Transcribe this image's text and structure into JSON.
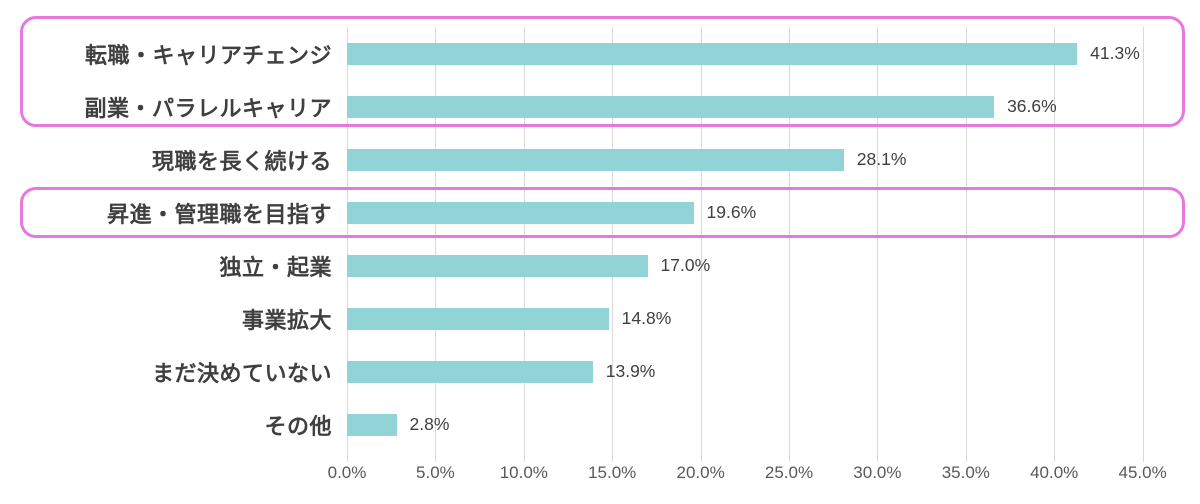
{
  "chart_data": {
    "type": "bar",
    "orientation": "horizontal",
    "title": "",
    "xlabel": "",
    "ylabel": "",
    "categories": [
      "転職・キャリアチェンジ",
      "副業・パラレルキャリア",
      "現職を長く続ける",
      "昇進・管理職を目指す",
      "独立・起業",
      "事業拡大",
      "まだ決めていない",
      "その他"
    ],
    "values": [
      41.3,
      36.6,
      28.1,
      19.6,
      17.0,
      14.8,
      13.9,
      2.8
    ],
    "value_labels": [
      "41.3%",
      "36.6%",
      "28.1%",
      "19.6%",
      "17.0%",
      "14.8%",
      "13.9%",
      "2.8%"
    ],
    "xlim": [
      0,
      45
    ],
    "x_tick_step": 5,
    "x_tick_labels": [
      "0.0%",
      "5.0%",
      "10.0%",
      "15.0%",
      "20.0%",
      "25.0%",
      "30.0%",
      "35.0%",
      "40.0%",
      "45.0%"
    ],
    "grid": "vertical",
    "legend_position": "none",
    "highlights": [
      {
        "name": "highlight-box-top-two",
        "categories": [
          "転職・キャリアチェンジ",
          "副業・パラレルキャリア"
        ],
        "start_row": 0,
        "end_row": 1
      },
      {
        "name": "highlight-box-promotion",
        "categories": [
          "昇進・管理職を目指す"
        ],
        "start_row": 3,
        "end_row": 3
      }
    ],
    "colors": {
      "bar": "#92d3d8",
      "highlight_border": "#e678de",
      "gridline": "#d9d9d9",
      "category_label": "#3f3f3f",
      "value_label": "#404040",
      "axis_label": "#595959",
      "background": "#ffffff"
    }
  }
}
